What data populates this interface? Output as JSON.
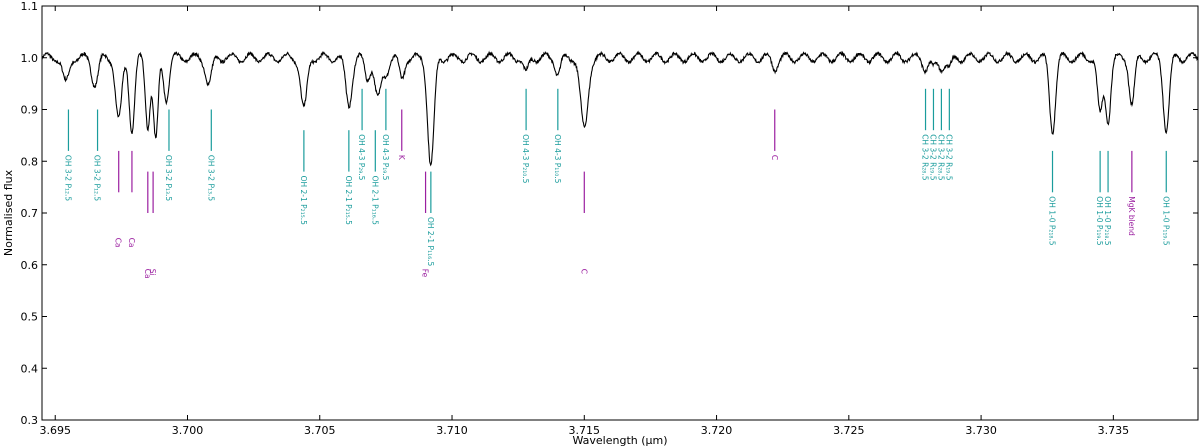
{
  "colors": {
    "oh": "#1a9c9c",
    "atom": "#9b1fa0",
    "spectrum": "#000000"
  },
  "chart_data": {
    "type": "line",
    "title": "",
    "xlabel": "Wavelength (μm)",
    "ylabel": "Normalised flux",
    "xlim": [
      3.6945,
      3.7382
    ],
    "ylim": [
      0.3,
      1.1
    ],
    "xticks": [
      "3.695",
      "3.700",
      "3.705",
      "3.710",
      "3.715",
      "3.720",
      "3.725",
      "3.730",
      "3.735"
    ],
    "yticks": [
      "0.3",
      "0.4",
      "0.5",
      "0.6",
      "0.7",
      "0.8",
      "0.9",
      "1.0",
      "1.1"
    ],
    "continuum": 1.0,
    "absorption_lines": [
      {
        "x": 3.6954,
        "depth": 0.05,
        "w": 0.00012
      },
      {
        "x": 3.6965,
        "depth": 0.05,
        "w": 0.00012
      },
      {
        "x": 3.6974,
        "depth": 0.12,
        "w": 0.00012
      },
      {
        "x": 3.6979,
        "depth": 0.14,
        "w": 0.0001
      },
      {
        "x": 3.6985,
        "depth": 0.13,
        "w": 9e-05
      },
      {
        "x": 3.6988,
        "depth": 0.16,
        "w": 9e-05
      },
      {
        "x": 3.6992,
        "depth": 0.08,
        "w": 0.0001
      },
      {
        "x": 3.7008,
        "depth": 0.05,
        "w": 0.00012
      },
      {
        "x": 3.7044,
        "depth": 0.1,
        "w": 0.00012
      },
      {
        "x": 3.7061,
        "depth": 0.09,
        "w": 0.00012
      },
      {
        "x": 3.7068,
        "depth": 0.04,
        "w": 0.0001
      },
      {
        "x": 3.7072,
        "depth": 0.08,
        "w": 0.00012
      },
      {
        "x": 3.7075,
        "depth": 0.03,
        "w": 0.0001
      },
      {
        "x": 3.7081,
        "depth": 0.04,
        "w": 0.0001
      },
      {
        "x": 3.7092,
        "depth": 0.21,
        "w": 0.00012
      },
      {
        "x": 3.7128,
        "depth": 0.03,
        "w": 0.0001
      },
      {
        "x": 3.714,
        "depth": 0.03,
        "w": 0.0001
      },
      {
        "x": 3.715,
        "depth": 0.14,
        "w": 0.00014
      },
      {
        "x": 3.7222,
        "depth": 0.02,
        "w": 0.0001
      },
      {
        "x": 3.7279,
        "depth": 0.02,
        "w": 0.0001
      },
      {
        "x": 3.7282,
        "depth": 0.02,
        "w": 0.0001
      },
      {
        "x": 3.7285,
        "depth": 0.02,
        "w": 0.0001
      },
      {
        "x": 3.7288,
        "depth": 0.02,
        "w": 0.0001
      },
      {
        "x": 3.7327,
        "depth": 0.14,
        "w": 0.00011
      },
      {
        "x": 3.7345,
        "depth": 0.11,
        "w": 0.0001
      },
      {
        "x": 3.7348,
        "depth": 0.12,
        "w": 0.0001
      },
      {
        "x": 3.7357,
        "depth": 0.09,
        "w": 0.0001
      },
      {
        "x": 3.737,
        "depth": 0.14,
        "w": 0.00011
      }
    ],
    "annotations": [
      {
        "x": 3.6955,
        "y0": 0.82,
        "y1": 0.9,
        "label": "OH 3-2 P₁₂.5",
        "kind": "oh",
        "ly": 0.82
      },
      {
        "x": 3.6966,
        "y0": 0.82,
        "y1": 0.9,
        "label": "OH 3-2 P₁₂.5",
        "kind": "oh",
        "ly": 0.82
      },
      {
        "x": 3.6974,
        "y0": 0.74,
        "y1": 0.82,
        "label": "Ca",
        "kind": "atom",
        "ly": 0.66
      },
      {
        "x": 3.6979,
        "y0": 0.74,
        "y1": 0.82,
        "label": "Ca",
        "kind": "atom",
        "ly": 0.66
      },
      {
        "x": 3.6985,
        "y0": 0.7,
        "y1": 0.78,
        "label": "Ca",
        "kind": "atom",
        "ly": 0.6
      },
      {
        "x": 3.6987,
        "y0": 0.7,
        "y1": 0.78,
        "label": "Si",
        "kind": "atom",
        "ly": 0.6
      },
      {
        "x": 3.6993,
        "y0": 0.82,
        "y1": 0.9,
        "label": "OH 3-2 P₁₃.5",
        "kind": "oh",
        "ly": 0.82
      },
      {
        "x": 3.7009,
        "y0": 0.82,
        "y1": 0.9,
        "label": "OH 3-2 P₁₃.5",
        "kind": "oh",
        "ly": 0.82
      },
      {
        "x": 3.7044,
        "y0": 0.78,
        "y1": 0.86,
        "label": "OH 2-1 P₂₁₅.5",
        "kind": "oh",
        "ly": 0.78
      },
      {
        "x": 3.7061,
        "y0": 0.78,
        "y1": 0.86,
        "label": "OH 2-1 P₂₁₅.5",
        "kind": "oh",
        "ly": 0.78
      },
      {
        "x": 3.7066,
        "y0": 0.86,
        "y1": 0.94,
        "label": "OH 4-3 P₂₉.5",
        "kind": "oh",
        "ly": 0.86
      },
      {
        "x": 3.7071,
        "y0": 0.78,
        "y1": 0.86,
        "label": "OH 2-1 P₁₁₆.5",
        "kind": "oh",
        "ly": 0.78
      },
      {
        "x": 3.7075,
        "y0": 0.86,
        "y1": 0.94,
        "label": "OH 4-3 P₁₉.5",
        "kind": "oh",
        "ly": 0.86
      },
      {
        "x": 3.7081,
        "y0": 0.82,
        "y1": 0.9,
        "label": "K",
        "kind": "atom",
        "ly": 0.82
      },
      {
        "x": 3.709,
        "y0": 0.7,
        "y1": 0.78,
        "label": "Fe",
        "kind": "atom",
        "ly": 0.6
      },
      {
        "x": 3.7092,
        "y0": 0.7,
        "y1": 0.78,
        "label": "OH 2-1 P₁₁₆.5",
        "kind": "oh",
        "ly": 0.7
      },
      {
        "x": 3.7128,
        "y0": 0.86,
        "y1": 0.94,
        "label": "OH 4-3 P₂₁₀.5",
        "kind": "oh",
        "ly": 0.86
      },
      {
        "x": 3.714,
        "y0": 0.86,
        "y1": 0.94,
        "label": "OH 4-3 P₁₁₀.5",
        "kind": "oh",
        "ly": 0.86
      },
      {
        "x": 3.715,
        "y0": 0.7,
        "y1": 0.78,
        "label": "C",
        "kind": "atom",
        "ly": 0.6
      },
      {
        "x": 3.7222,
        "y0": 0.82,
        "y1": 0.9,
        "label": "C",
        "kind": "atom",
        "ly": 0.82
      },
      {
        "x": 3.7279,
        "y0": 0.86,
        "y1": 0.94,
        "label": "CH 3-2 R₂₈.5",
        "kind": "oh",
        "ly": 0.86
      },
      {
        "x": 3.7282,
        "y0": 0.86,
        "y1": 0.94,
        "label": "CH 3-2 R₁₉.5",
        "kind": "oh",
        "ly": 0.86
      },
      {
        "x": 3.7285,
        "y0": 0.86,
        "y1": 0.94,
        "label": "CH 3-2 R₂₈.5",
        "kind": "oh",
        "ly": 0.86
      },
      {
        "x": 3.7288,
        "y0": 0.86,
        "y1": 0.94,
        "label": "CH 3-2 R₁₉.5",
        "kind": "oh",
        "ly": 0.86
      },
      {
        "x": 3.7327,
        "y0": 0.74,
        "y1": 0.82,
        "label": "OH 1-0 P₂₁₈.5",
        "kind": "oh",
        "ly": 0.74
      },
      {
        "x": 3.7345,
        "y0": 0.74,
        "y1": 0.82,
        "label": "OH 1-0 P₁₁₉.5",
        "kind": "oh",
        "ly": 0.74
      },
      {
        "x": 3.7348,
        "y0": 0.74,
        "y1": 0.82,
        "label": "OH 1-0 P₂₁₈.5",
        "kind": "oh",
        "ly": 0.74
      },
      {
        "x": 3.7357,
        "y0": 0.74,
        "y1": 0.82,
        "label": "MgK blend",
        "kind": "atom",
        "ly": 0.74
      },
      {
        "x": 3.737,
        "y0": 0.74,
        "y1": 0.82,
        "label": "OH 1-0 P₁₁₉.5",
        "kind": "oh",
        "ly": 0.74
      }
    ]
  }
}
